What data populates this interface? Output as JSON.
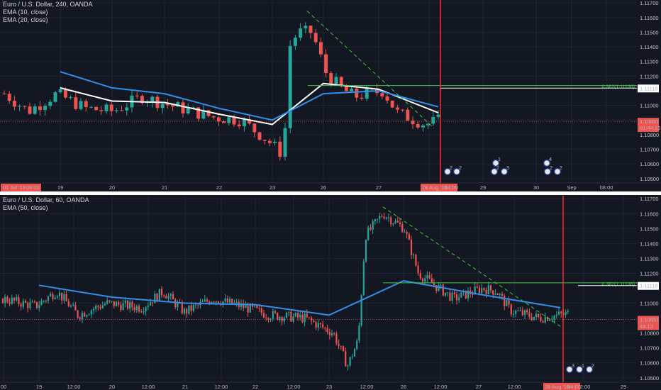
{
  "colors": {
    "background": "#131722",
    "grid": "#1f2433",
    "up": "#26a69a",
    "down": "#ef5350",
    "ema_fast": "#ffffff",
    "ema_slow": "#2f8fea",
    "trend": "#3ec93e",
    "marker": "#ff2b2b",
    "price_badge": "#ef5350"
  },
  "top_panel": {
    "legend": [
      "Euro / U.S. Dollar, 240, OANDA",
      "EMA (10, close)",
      "EMA (20, close)"
    ],
    "price_axis": [
      "1.11700",
      "1.11600",
      "1.11500",
      "1.11400",
      "1.11300",
      "1.11200",
      "1.11000",
      "1.10900",
      "1.10800",
      "1.10700",
      "1.10600",
      "1.10500"
    ],
    "time_axis": [
      "19",
      "20",
      "21",
      "22",
      "23",
      "26",
      "27",
      "29",
      "30",
      "Sep",
      "08:00"
    ],
    "start_badge": "01 Jul '19",
    "start_badge_time": "08:00",
    "marker_badge": "28 Aug '19",
    "marker_badge_time": "04:00",
    "level_label": "1.11118",
    "price_label": "1.10891",
    "countdown": "01:44:13",
    "fib_label": "0.382(1.11136)",
    "event_counts": [
      "2",
      "2",
      "1",
      "2",
      "3",
      "4",
      "2",
      "2"
    ]
  },
  "bottom_panel": {
    "legend": [
      "Euro / U.S. Dollar, 60, OANDA",
      "EMA (50, close)"
    ],
    "price_axis": [
      "1.11700",
      "1.11600",
      "1.11500",
      "1.11400",
      "1.11300",
      "1.11200",
      "1.11000",
      "1.10900",
      "1.10800",
      "1.10700",
      "1.10600",
      "1.10500"
    ],
    "time_axis": [
      "00",
      "19",
      "12:00",
      "20",
      "12:00",
      "21",
      "12:00",
      "22",
      "12:00",
      "23",
      "12:00",
      "26",
      "12:00",
      "27",
      "12:00",
      "12:00",
      "29"
    ],
    "marker_badge": "28 Aug '19",
    "marker_badge_time": "04:00",
    "level_label": "1.11118",
    "price_label": "1.10891",
    "countdown": "44:13",
    "fib_label": "0.382(1.11136)",
    "event_counts": [
      "3",
      "1",
      "2"
    ]
  },
  "chart_data": [
    {
      "type": "line",
      "title": "Euro / U.S. Dollar, 240, OANDA",
      "x": [
        "19",
        "20",
        "21",
        "22",
        "23",
        "26",
        "27",
        "28",
        "29",
        "30",
        "Sep"
      ],
      "series": [
        {
          "name": "EMA (10, close)",
          "values": [
            1.1112,
            1.1103,
            1.1102,
            1.1094,
            1.1087,
            1.1115,
            1.1111,
            1.1095,
            null,
            null,
            null
          ]
        },
        {
          "name": "EMA (20, close)",
          "values": [
            1.1123,
            1.1112,
            1.1108,
            1.1098,
            1.109,
            1.1108,
            1.111,
            1.1099,
            null,
            null,
            null
          ]
        }
      ],
      "price_levels": {
        "fib_0.382": 1.11136,
        "level": 1.11118,
        "last": 1.10891
      },
      "ylim": [
        1.1048,
        1.1172
      ]
    },
    {
      "type": "line",
      "title": "Euro / U.S. Dollar, 60, OANDA",
      "x": [
        "19",
        "20",
        "21",
        "22",
        "23",
        "26",
        "27",
        "28",
        "29"
      ],
      "series": [
        {
          "name": "EMA (50, close)",
          "values": [
            1.1112,
            1.1104,
            1.11,
            1.1099,
            1.1092,
            1.1115,
            1.1106,
            1.1097,
            null
          ]
        }
      ],
      "price_levels": {
        "fib_0.382": 1.11136,
        "level": 1.11118,
        "last": 1.10891
      },
      "ylim": [
        1.1048,
        1.1172
      ]
    }
  ]
}
